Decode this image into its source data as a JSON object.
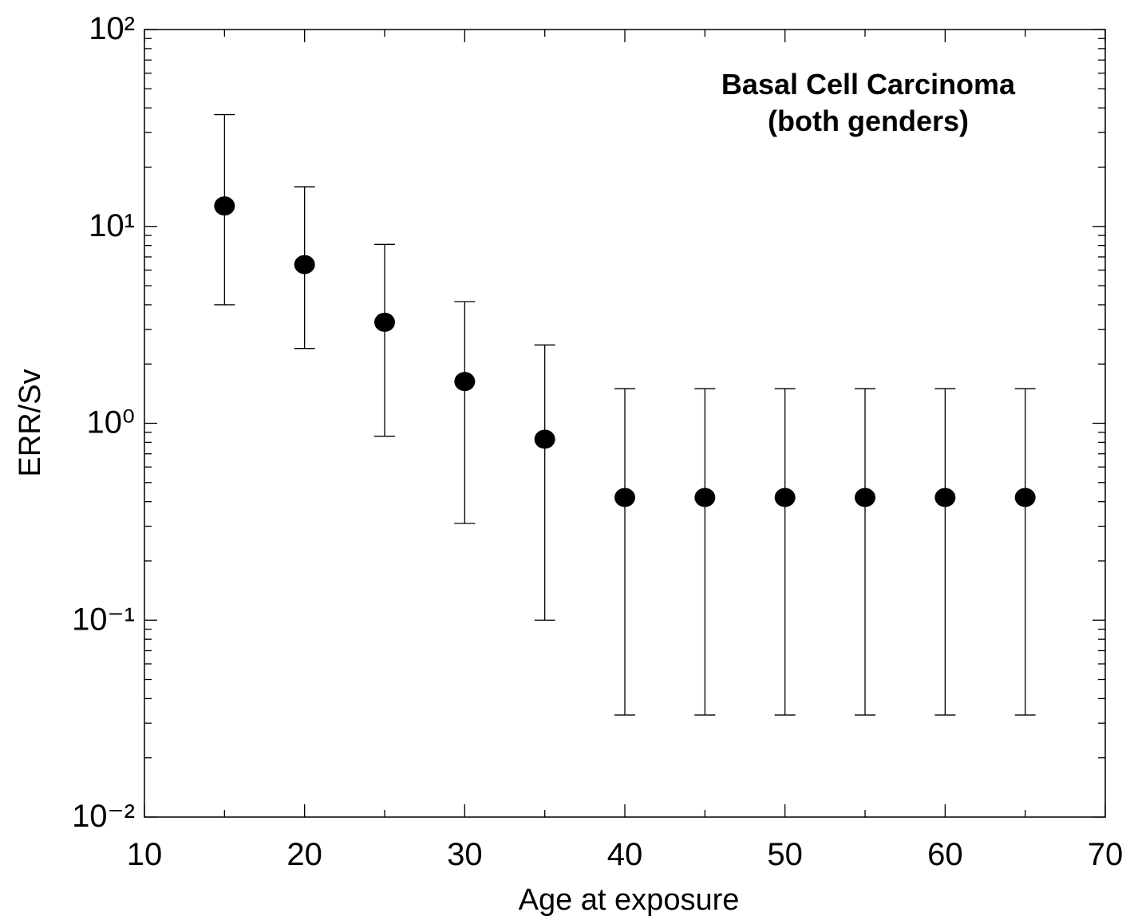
{
  "chart_data": {
    "type": "scatter",
    "x_label": "Age at exposure",
    "y_label": "ERR/Sv",
    "annotation": [
      "Basal Cell Carcinoma",
      "(both genders)"
    ],
    "x": [
      15,
      20,
      25,
      30,
      35,
      40,
      45,
      50,
      55,
      60,
      65
    ],
    "values": [
      12.7,
      6.4,
      3.26,
      1.63,
      0.83,
      0.42,
      0.42,
      0.42,
      0.42,
      0.42,
      0.42
    ],
    "lower": [
      4.0,
      2.4,
      0.86,
      0.31,
      0.1,
      0.033,
      0.033,
      0.033,
      0.033,
      0.033,
      0.033
    ],
    "upper": [
      37,
      15.9,
      8.1,
      4.15,
      2.5,
      1.5,
      1.5,
      1.5,
      1.5,
      1.5,
      1.5
    ],
    "color": "#000000",
    "xlim": [
      10,
      70
    ],
    "xticks": [
      10,
      20,
      30,
      40,
      50,
      60,
      70
    ],
    "ylim": [
      0.01,
      100
    ],
    "yticks": [
      {
        "value": 0.01,
        "label": "10⁻²"
      },
      {
        "value": 0.1,
        "label": "10⁻¹"
      },
      {
        "value": 1,
        "label": "10⁰"
      },
      {
        "value": 10,
        "label": "10¹"
      },
      {
        "value": 100,
        "label": "10²"
      }
    ],
    "ylog": true,
    "grid": false
  }
}
